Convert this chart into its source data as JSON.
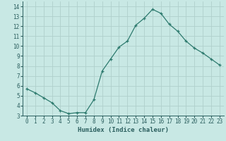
{
  "x": [
    0,
    1,
    2,
    3,
    4,
    5,
    6,
    7,
    8,
    9,
    10,
    11,
    12,
    13,
    14,
    15,
    16,
    17,
    18,
    19,
    20,
    21,
    22,
    23
  ],
  "y": [
    5.7,
    5.3,
    4.8,
    4.3,
    3.5,
    3.2,
    3.3,
    3.3,
    4.6,
    7.5,
    8.7,
    9.9,
    10.5,
    12.1,
    12.8,
    13.7,
    13.3,
    12.2,
    11.5,
    10.5,
    9.8,
    9.3,
    8.7,
    8.1
  ],
  "line_color": "#2d7a6e",
  "marker": "+",
  "marker_color": "#2d7a6e",
  "bg_color": "#c8e8e4",
  "grid_color": "#b0d0cc",
  "xlabel": "Humidex (Indice chaleur)",
  "xlabel_color": "#2d6060",
  "tick_color": "#2d6060",
  "xlim": [
    -0.5,
    23.5
  ],
  "ylim": [
    3,
    14.5
  ],
  "yticks": [
    3,
    4,
    5,
    6,
    7,
    8,
    9,
    10,
    11,
    12,
    13,
    14
  ],
  "xticks": [
    0,
    1,
    2,
    3,
    4,
    5,
    6,
    7,
    8,
    9,
    10,
    11,
    12,
    13,
    14,
    15,
    16,
    17,
    18,
    19,
    20,
    21,
    22,
    23
  ],
  "xtick_labels": [
    "0",
    "1",
    "2",
    "3",
    "4",
    "5",
    "6",
    "7",
    "8",
    "9",
    "10",
    "11",
    "12",
    "13",
    "14",
    "15",
    "16",
    "17",
    "18",
    "19",
    "20",
    "21",
    "22",
    "23"
  ],
  "font_name": "monospace",
  "xlabel_fontsize": 6.5,
  "tick_fontsize": 5.5
}
